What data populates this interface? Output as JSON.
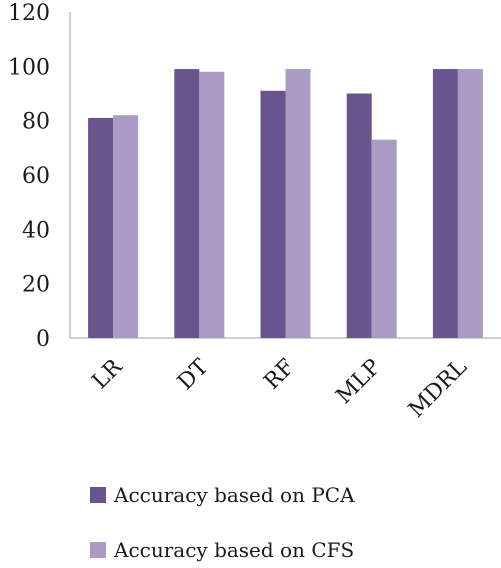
{
  "chart_data": {
    "type": "bar",
    "categories": [
      "LR",
      "DT",
      "RF",
      "MLP",
      "MDRL"
    ],
    "series": [
      {
        "name": "Accuracy based on PCA",
        "values": [
          81,
          99,
          91,
          90,
          99
        ],
        "color": "#6a548e"
      },
      {
        "name": "Accuracy based on CFS",
        "values": [
          82,
          98,
          99,
          73,
          99
        ],
        "color": "#a99bc4"
      }
    ],
    "yticks": [
      0,
      20,
      40,
      60,
      80,
      100,
      120
    ],
    "ylim": [
      0,
      120
    ],
    "grid": false,
    "legend_position": "bottom",
    "title": "",
    "xlabel": "",
    "ylabel": ""
  }
}
